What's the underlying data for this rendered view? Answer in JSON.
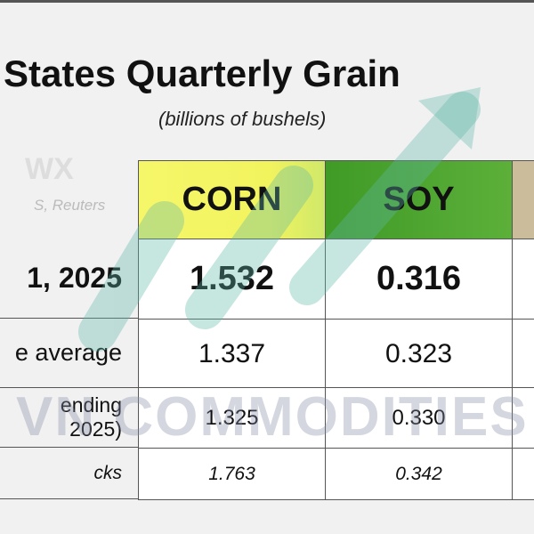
{
  "header": {
    "title": "States Quarterly Grain",
    "subtitle": "(billions of bushels)",
    "logo": "WX",
    "source": "S, Reuters"
  },
  "table": {
    "columns": [
      "CORN",
      "SOY"
    ],
    "rows": [
      {
        "label": [
          "1, 2025"
        ],
        "cells": [
          "1.532",
          "0.316"
        ]
      },
      {
        "label": [
          "e average"
        ],
        "cells": [
          "1.337",
          "0.323"
        ]
      },
      {
        "label": [
          "ending",
          "2025)"
        ],
        "cells": [
          "1.325",
          "0.330"
        ]
      },
      {
        "label": [
          "cks"
        ],
        "cells": [
          "1.763",
          "0.342"
        ]
      }
    ]
  },
  "watermark": "VN COMMODITIES"
}
